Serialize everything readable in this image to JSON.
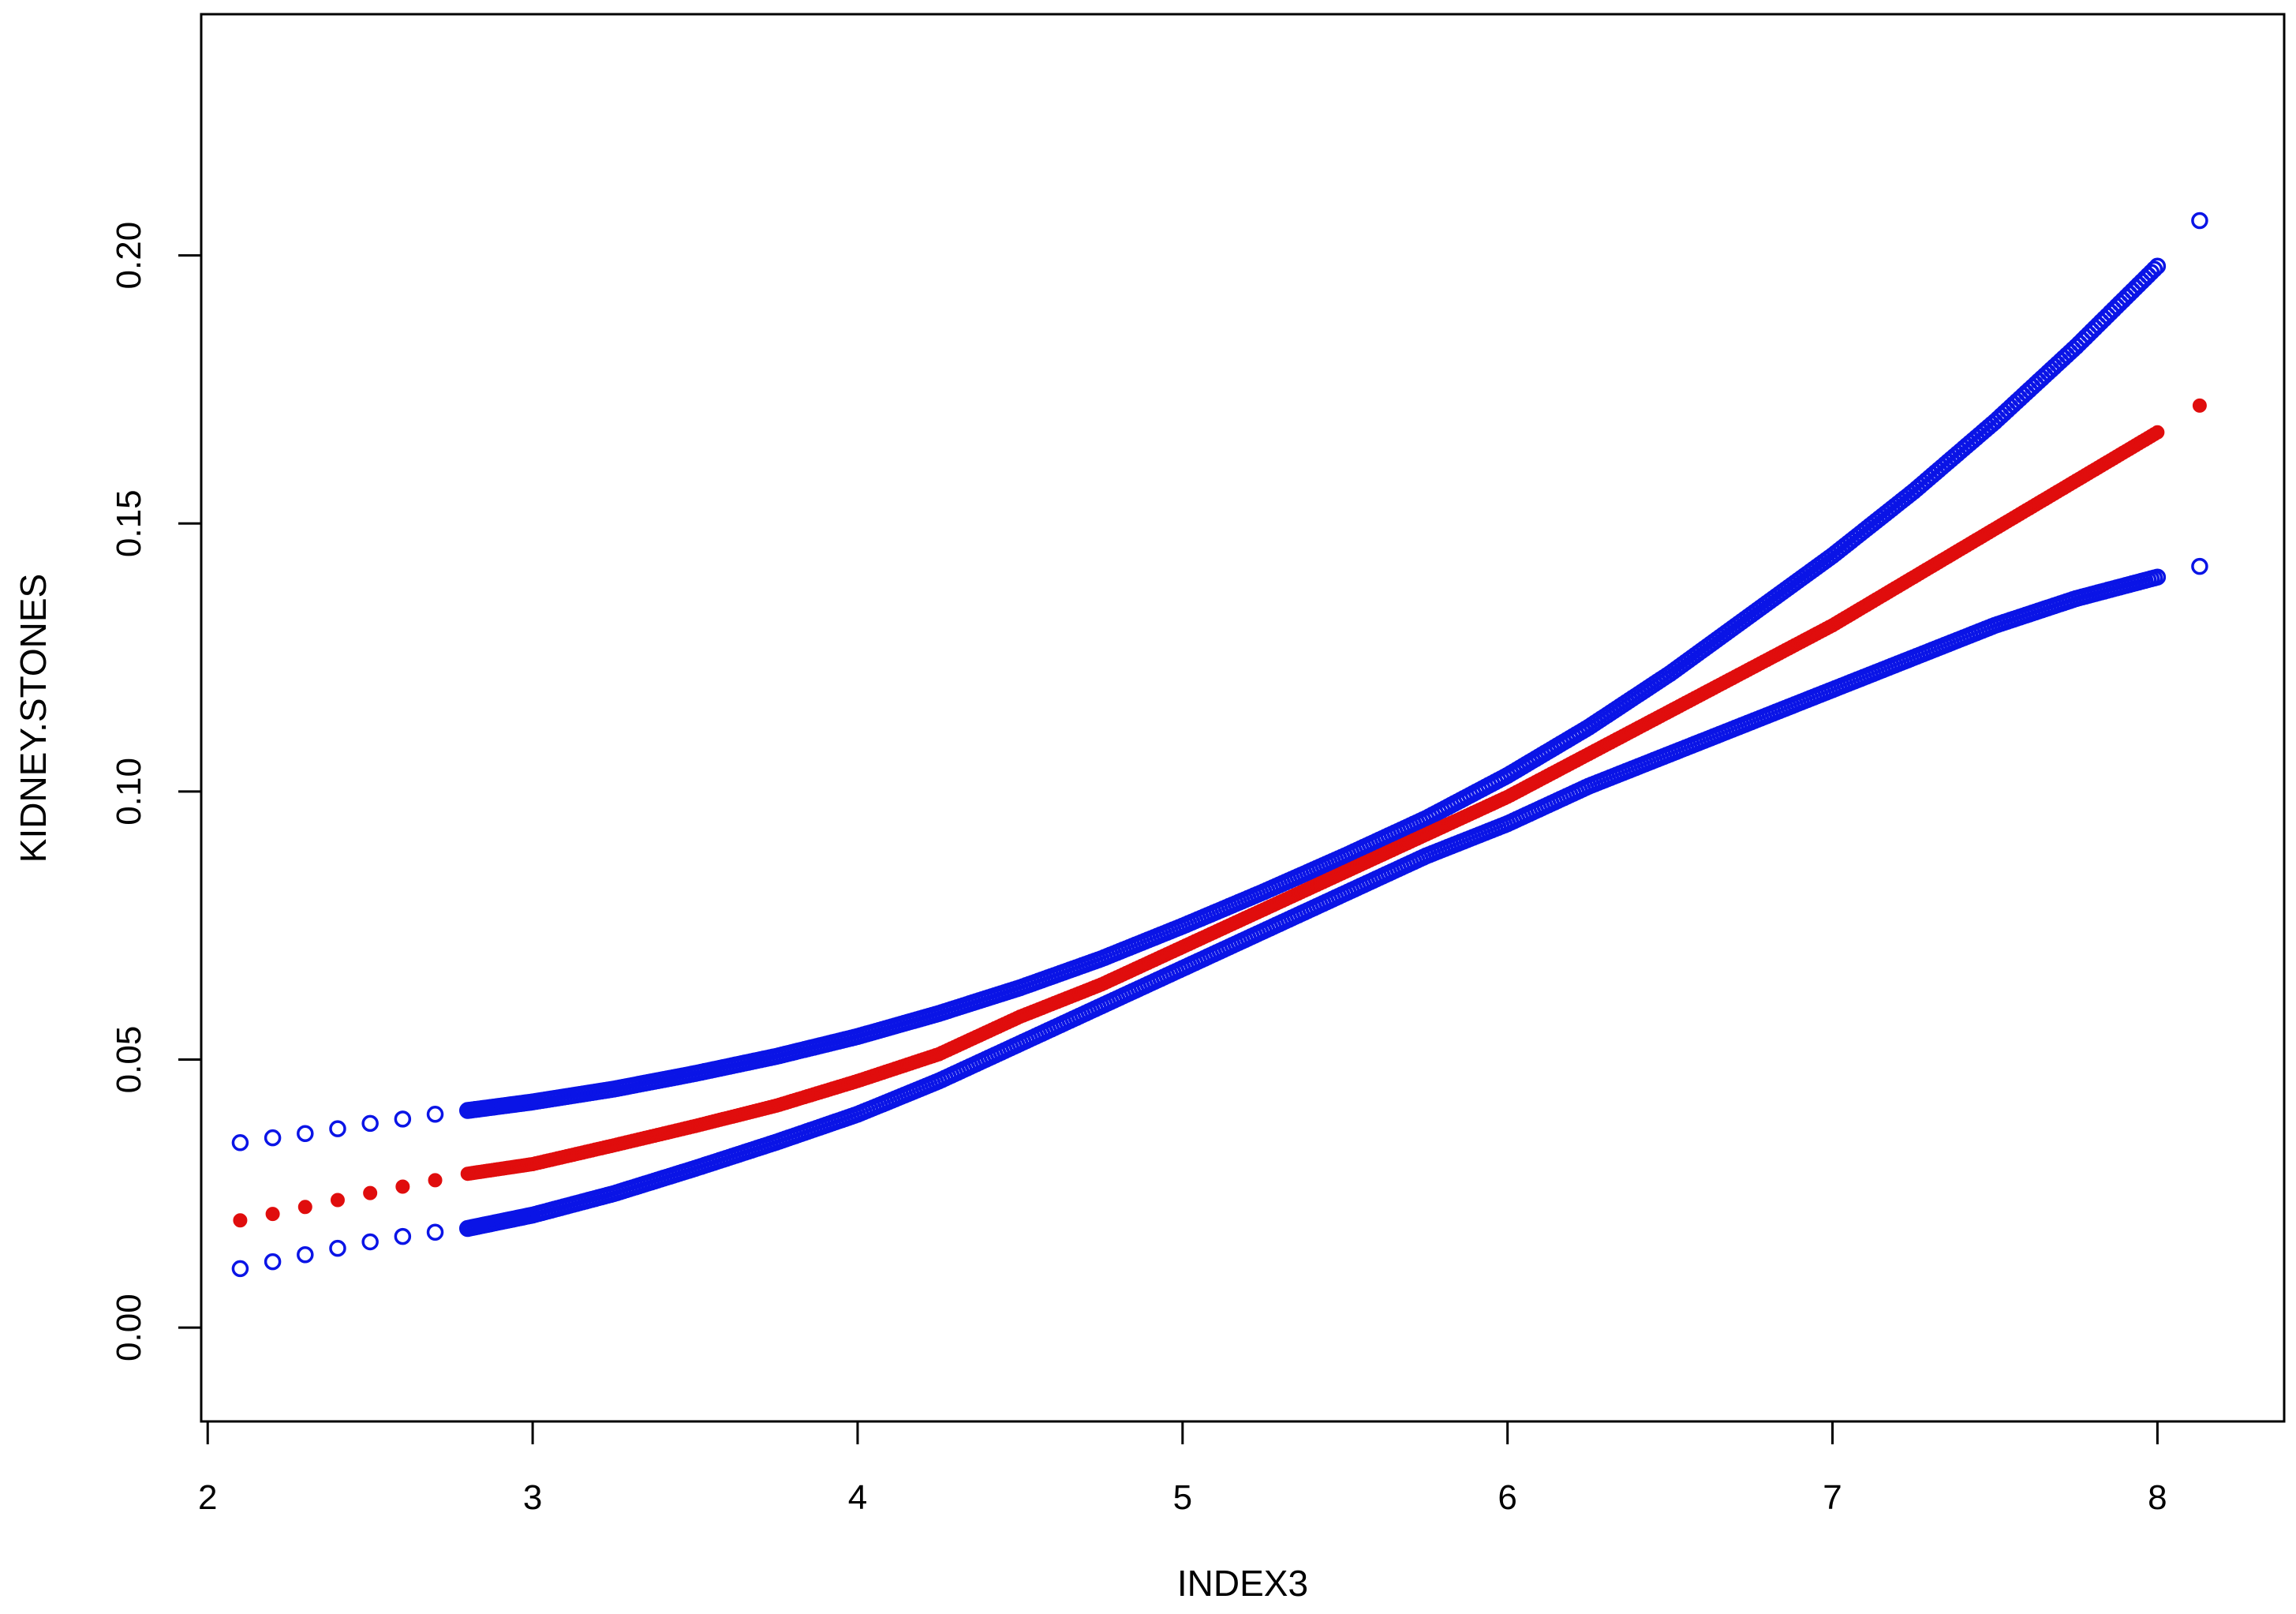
{
  "chart_data": {
    "type": "scatter",
    "title": "",
    "xlabel": "INDEX3",
    "ylabel": "KIDNEY.STONES",
    "xlim": [
      1.98,
      8.39
    ],
    "ylim": [
      -0.0175,
      0.245
    ],
    "xticks": [
      2,
      3,
      4,
      5,
      6,
      7,
      8
    ],
    "xtick_labels": [
      "2",
      "3",
      "4",
      "5",
      "6",
      "7",
      "8"
    ],
    "yticks": [
      0.0,
      0.05,
      0.1,
      0.15,
      0.2
    ],
    "ytick_labels": [
      "0.00",
      "0.05",
      "0.10",
      "0.15",
      "0.20"
    ],
    "grid": false,
    "legend": "none",
    "colors": {
      "upper": "#0a14e6",
      "center": "#e00d0d",
      "lower": "#0a14e6",
      "axes": "#000000"
    },
    "series": [
      {
        "color": "#0a14e6",
        "marker": "open-circle",
        "x": [
          2.1,
          2.2,
          2.3,
          2.4,
          2.5,
          2.6,
          2.7,
          2.8,
          3.0,
          3.25,
          3.5,
          3.75,
          4.0,
          4.25,
          4.5,
          4.75,
          5.0,
          5.25,
          5.5,
          5.75,
          6.0,
          6.25,
          6.5,
          6.75,
          7.0,
          7.25,
          7.5,
          7.75,
          8.0,
          8.13
        ],
        "y": [
          0.0345,
          0.0354,
          0.0362,
          0.0371,
          0.0381,
          0.0389,
          0.0398,
          0.0405,
          0.0421,
          0.0445,
          0.0474,
          0.0506,
          0.0543,
          0.0586,
          0.0634,
          0.0688,
          0.0749,
          0.0813,
          0.088,
          0.095,
          0.103,
          0.112,
          0.122,
          0.133,
          0.144,
          0.156,
          0.169,
          0.183,
          0.198,
          0.2065
        ]
      },
      {
        "color": "#e00d0d",
        "marker": "filled-circle",
        "x": [
          2.1,
          2.2,
          2.3,
          2.4,
          2.5,
          2.6,
          2.7,
          2.8,
          3.0,
          3.25,
          3.5,
          3.75,
          4.0,
          4.25,
          4.5,
          4.75,
          5.0,
          5.25,
          5.5,
          5.75,
          6.0,
          6.25,
          6.5,
          6.75,
          7.0,
          7.25,
          7.5,
          7.75,
          8.0,
          8.13
        ],
        "y": [
          0.02,
          0.0212,
          0.0225,
          0.0238,
          0.0251,
          0.0263,
          0.0275,
          0.0287,
          0.0305,
          0.034,
          0.0376,
          0.0414,
          0.046,
          0.051,
          0.058,
          0.064,
          0.071,
          0.078,
          0.085,
          0.092,
          0.099,
          0.107,
          0.115,
          0.123,
          0.131,
          0.14,
          0.149,
          0.158,
          0.167,
          0.172
        ]
      },
      {
        "color": "#0a14e6",
        "marker": "open-circle",
        "x": [
          2.1,
          2.2,
          2.3,
          2.4,
          2.5,
          2.6,
          2.7,
          2.8,
          3.0,
          3.25,
          3.5,
          3.75,
          4.0,
          4.25,
          4.5,
          4.75,
          5.0,
          5.25,
          5.5,
          5.75,
          6.0,
          6.25,
          6.5,
          6.75,
          7.0,
          7.25,
          7.5,
          7.75,
          8.0,
          8.13
        ],
        "y": [
          0.011,
          0.0123,
          0.0136,
          0.0148,
          0.016,
          0.017,
          0.0178,
          0.0185,
          0.021,
          0.025,
          0.0297,
          0.0346,
          0.0398,
          0.046,
          0.053,
          0.06,
          0.067,
          0.074,
          0.081,
          0.088,
          0.094,
          0.101,
          0.107,
          0.113,
          0.119,
          0.125,
          0.131,
          0.136,
          0.14,
          0.142
        ]
      }
    ]
  }
}
